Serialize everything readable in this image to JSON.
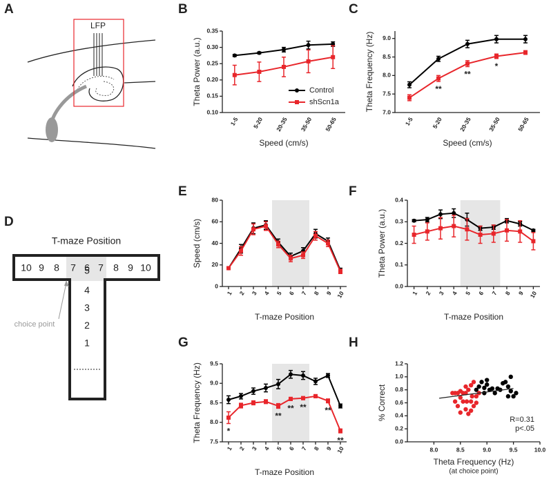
{
  "diagram_a": {
    "panel": "A",
    "label": "LFP"
  },
  "diagram_d": {
    "panel": "D",
    "title": "T-maze Position",
    "row": [
      "10",
      "9",
      "8",
      "7",
      "6",
      "7",
      "8",
      "9",
      "10"
    ],
    "column": [
      "5",
      "4",
      "3",
      "2",
      "1"
    ],
    "callout": "choice point"
  },
  "chart_data": [
    {
      "type": "line",
      "panel": "B",
      "xlabel": "Speed (cm/s)",
      "ylabel": "Theta Power (a.u.)",
      "categories": [
        "1-5",
        "5-20",
        "20-35",
        "35-50",
        "50-65"
      ],
      "ylim": [
        0.1,
        0.35
      ],
      "yticks": [
        {
          "value": 0.1,
          "label": "0.10"
        },
        0.15,
        {
          "value": 0.2,
          "label": "0.20"
        },
        0.25,
        {
          "value": 0.3,
          "label": "0.30"
        },
        0.35
      ],
      "legend": "lower right",
      "series": [
        {
          "name": "Control",
          "color": "#000000",
          "values": [
            0.275,
            0.283,
            0.293,
            0.307,
            0.31
          ],
          "errors": [
            0.003,
            0.003,
            0.007,
            0.012,
            0.007
          ]
        },
        {
          "name": "shScn1a",
          "color": "#e8262b",
          "values": [
            0.215,
            0.225,
            0.24,
            0.257,
            0.27
          ],
          "errors": [
            0.03,
            0.03,
            0.03,
            0.035,
            0.035
          ]
        }
      ]
    },
    {
      "type": "line",
      "panel": "C",
      "xlabel": "Speed (cm/s)",
      "ylabel": "Theta Frequency (Hz)",
      "categories": [
        "1-5",
        "5-20",
        "20-35",
        "35-50",
        "50-65"
      ],
      "ylim": [
        7.0,
        9.2
      ],
      "yticks": [
        {
          "value": 7,
          "label": "7.0"
        },
        7.5,
        {
          "value": 8,
          "label": "8.0"
        },
        8.5,
        {
          "value": 9,
          "label": "9.0"
        }
      ],
      "annotations": [
        null,
        "**",
        "**",
        "*",
        null
      ],
      "series": [
        {
          "name": "Control",
          "color": "#000000",
          "values": [
            7.75,
            8.45,
            8.85,
            8.98,
            8.98
          ],
          "errors": [
            0.08,
            0.07,
            0.1,
            0.1,
            0.1
          ]
        },
        {
          "name": "shScn1a",
          "color": "#e8262b",
          "values": [
            7.4,
            7.92,
            8.32,
            8.52,
            8.62
          ],
          "errors": [
            0.08,
            0.08,
            0.08,
            0.06,
            0.05
          ]
        }
      ]
    },
    {
      "type": "line",
      "panel": "E",
      "xlabel": "T-maze Position",
      "ylabel": "Speed (cm/s)",
      "x": [
        1,
        2,
        3,
        4,
        5,
        6,
        7,
        8,
        9,
        10
      ],
      "xlim": [
        0.5,
        10.5
      ],
      "xticks": [
        1,
        2,
        3,
        4,
        5,
        6,
        7,
        8,
        9,
        10
      ],
      "shaded": [
        4.5,
        7.5
      ],
      "ylim": [
        0,
        80
      ],
      "yticks": [
        0,
        20,
        40,
        60,
        80
      ],
      "series": [
        {
          "name": "Control",
          "color": "#000000",
          "values": [
            17,
            35,
            54,
            57,
            41,
            28,
            33,
            49,
            42,
            15
          ],
          "errors": [
            1,
            4,
            5,
            4,
            3,
            3,
            3,
            4,
            3,
            2
          ]
        },
        {
          "name": "shScn1a",
          "color": "#e8262b",
          "values": [
            17,
            33,
            53,
            56,
            39,
            26,
            29,
            47,
            40,
            14
          ],
          "errors": [
            1,
            4,
            5,
            4,
            3,
            3,
            3,
            4,
            3,
            2
          ]
        }
      ]
    },
    {
      "type": "line",
      "panel": "F",
      "xlabel": "T-maze Position",
      "ylabel": "Theta Power (a.u.)",
      "x": [
        1,
        2,
        3,
        4,
        5,
        6,
        7,
        8,
        9,
        10
      ],
      "xlim": [
        0.5,
        10.5
      ],
      "xticks": [
        1,
        2,
        3,
        4,
        5,
        6,
        7,
        8,
        9,
        10
      ],
      "shaded": [
        4.5,
        7.5
      ],
      "ylim": [
        0,
        0.4
      ],
      "yticks": [
        {
          "value": 0,
          "label": "0.0"
        },
        0.1,
        0.2,
        0.3,
        0.4
      ],
      "series": [
        {
          "name": "Control",
          "color": "#000000",
          "values": [
            0.305,
            0.31,
            0.335,
            0.34,
            0.31,
            0.27,
            0.275,
            0.305,
            0.29,
            0.26
          ],
          "errors": [
            0.005,
            0.01,
            0.02,
            0.02,
            0.03,
            0.01,
            0.01,
            0.01,
            0.01,
            0.005
          ]
        },
        {
          "name": "shScn1a",
          "color": "#e8262b",
          "values": [
            0.24,
            0.255,
            0.27,
            0.28,
            0.265,
            0.24,
            0.245,
            0.26,
            0.255,
            0.21
          ],
          "errors": [
            0.04,
            0.04,
            0.05,
            0.05,
            0.05,
            0.04,
            0.04,
            0.05,
            0.05,
            0.04
          ]
        }
      ]
    },
    {
      "type": "line",
      "panel": "G",
      "xlabel": "T-maze Position",
      "ylabel": "Theta Frequency (Hz)",
      "x": [
        1,
        2,
        3,
        4,
        5,
        6,
        7,
        8,
        9,
        10
      ],
      "xlim": [
        0.5,
        10.5
      ],
      "xticks": [
        1,
        2,
        3,
        4,
        5,
        6,
        7,
        8,
        9,
        10
      ],
      "shaded": [
        4.5,
        7.5
      ],
      "ylim": [
        7.5,
        9.5
      ],
      "yticks": [
        7.5,
        {
          "value": 8,
          "label": "8.0"
        },
        8.5,
        {
          "value": 9,
          "label": "9.0"
        },
        9.5
      ],
      "annotations": [
        "*",
        null,
        null,
        null,
        "**",
        "**",
        "**",
        null,
        "**",
        "**"
      ],
      "series": [
        {
          "name": "Control",
          "color": "#000000",
          "values": [
            8.58,
            8.67,
            8.8,
            8.88,
            8.98,
            9.23,
            9.2,
            9.05,
            9.2,
            8.42
          ],
          "errors": [
            0.1,
            0.07,
            0.08,
            0.1,
            0.12,
            0.1,
            0.1,
            0.08,
            0.05,
            0.05
          ]
        },
        {
          "name": "shScn1a",
          "color": "#e8262b",
          "values": [
            8.12,
            8.43,
            8.5,
            8.53,
            8.42,
            8.6,
            8.62,
            8.67,
            8.55,
            7.78
          ],
          "errors": [
            0.15,
            0.06,
            0.05,
            0.05,
            0.06,
            0.04,
            0.04,
            0.04,
            0.05,
            0.05
          ]
        }
      ]
    },
    {
      "type": "scatter",
      "panel": "H",
      "xlabel": "Theta Frequency (Hz)",
      "xlabel_note": "(at choice point)",
      "ylabel": "% Correct",
      "xlim": [
        7.5,
        10
      ],
      "xticks": [
        {
          "value": 8,
          "label": "8.0"
        },
        8.5,
        {
          "value": 9,
          "label": "9.0"
        },
        9.5,
        {
          "value": 10,
          "label": "10.0"
        }
      ],
      "ylim": [
        0,
        1.2
      ],
      "yticks": [
        {
          "value": 0,
          "label": "0.0"
        },
        0.2,
        0.4,
        0.6,
        0.8,
        {
          "value": 1,
          "label": "1.0"
        },
        1.2
      ],
      "annotations": [
        "R=0.31",
        "p<.05"
      ],
      "trend": {
        "x": [
          8.1,
          9.5
        ],
        "y": [
          0.67,
          0.82
        ]
      },
      "series": [
        {
          "color": "#e8262b",
          "x": [
            8.35,
            8.4,
            8.45,
            8.5,
            8.55,
            8.6,
            8.65,
            8.7,
            8.75,
            8.5,
            8.55,
            8.62,
            8.45,
            8.5,
            8.6,
            8.7,
            8.75,
            8.65,
            8.8,
            8.72,
            8.8,
            8.6,
            8.4,
            8.7,
            8.85
          ],
          "values": [
            0.75,
            0.75,
            0.75,
            0.78,
            0.75,
            0.75,
            0.8,
            0.87,
            0.92,
            0.68,
            0.62,
            0.62,
            0.55,
            0.45,
            0.5,
            0.48,
            0.55,
            0.43,
            0.6,
            0.7,
            0.7,
            0.85,
            0.62,
            0.62,
            0.75
          ]
        },
        {
          "color": "#000000",
          "x": [
            8.8,
            8.85,
            8.9,
            8.95,
            9.0,
            9.05,
            9.1,
            9.15,
            9.2,
            9.25,
            9.3,
            9.35,
            9.4,
            9.45,
            9.5,
            9.45,
            9.55,
            9.4,
            8.95,
            9.0
          ],
          "values": [
            0.8,
            0.85,
            0.92,
            0.83,
            0.88,
            0.8,
            0.82,
            0.75,
            0.82,
            0.8,
            0.9,
            0.92,
            0.85,
            0.78,
            0.7,
            1.0,
            0.75,
            0.7,
            0.75,
            0.95
          ]
        }
      ]
    }
  ]
}
